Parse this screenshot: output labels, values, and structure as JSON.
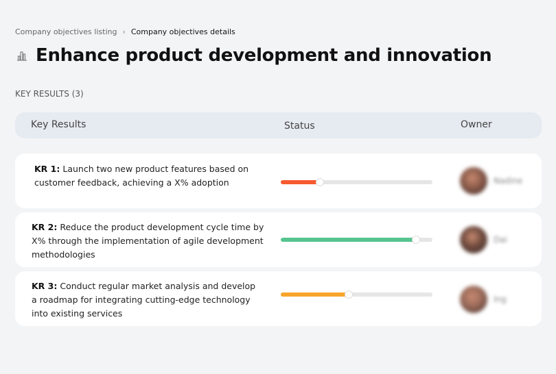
{
  "breadcrumb": {
    "items": [
      "Company objectives listing",
      "Company objectives details"
    ],
    "separator": "›"
  },
  "page": {
    "title": "Enhance product development and innovation",
    "icon": "buildings-chart-icon"
  },
  "section": {
    "label": "KEY RESULTS (3)"
  },
  "table": {
    "headers": {
      "key_results": "Key Results",
      "status": "Status",
      "owner": "Owner"
    },
    "rows": [
      {
        "id": "KR 1:",
        "text": " Launch two new product features based on customer feedback, achieving a X% adoption",
        "progress": 26,
        "color": "#f65a2f",
        "owner": "Nadine",
        "avatar_color": "#8a5a4a"
      },
      {
        "id": "KR 2:",
        "text": " Reduce the product development cycle time by X% through the implementation of agile development methodologies",
        "progress": 89,
        "color": "#55c48e",
        "owner": "Dai",
        "avatar_color": "#6e4a3e"
      },
      {
        "id": "KR 3:",
        "text": " Conduct regular market analysis and develop a roadmap for integrating cutting-edge technology into existing services",
        "progress": 45,
        "color": "#f9a52b",
        "owner": "Ing",
        "avatar_color": "#9a6a5a"
      }
    ]
  }
}
